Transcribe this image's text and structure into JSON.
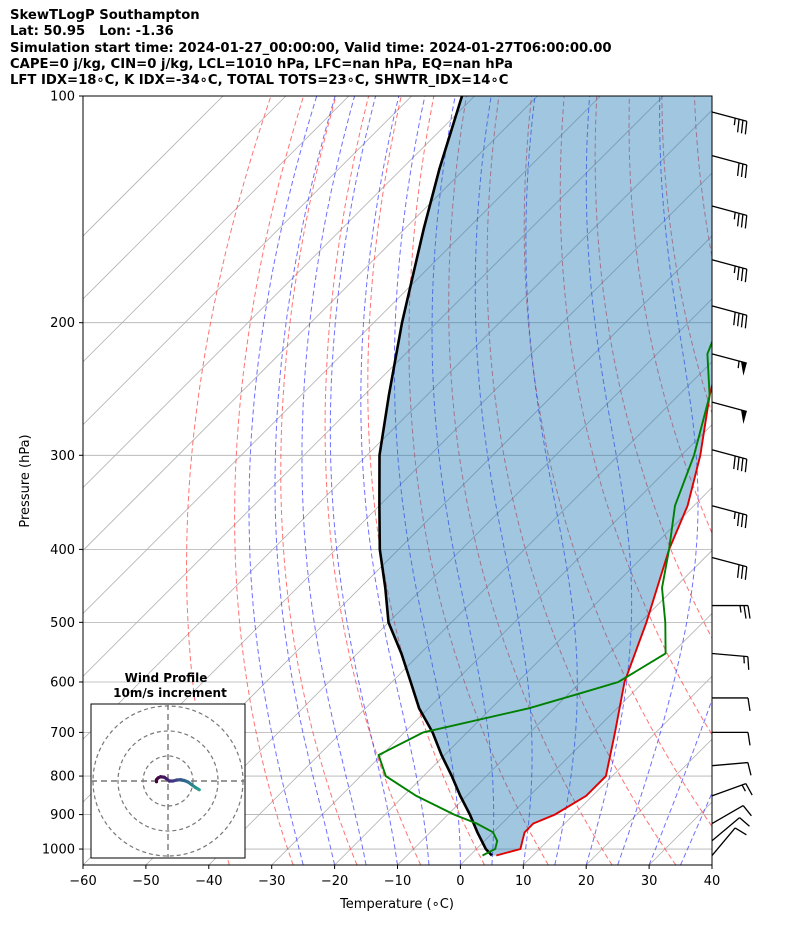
{
  "header": {
    "line1": "SkewTLogP Southampton",
    "line2": "Lat: 50.95   Lon: -1.36",
    "line3": "Simulation start time: 2024-01-27_00:00:00, Valid time: 2024-01-27T06:00:00.00",
    "line4": "CAPE=0 j/kg, CIN=0 j/kg, LCL=1010 hPa, LFC=nan hPa, EQ=nan hPa",
    "line5": "LFT IDX=18∘C, K IDX=-34∘C, TOTAL TOTS=23∘C, SHWTR_IDX=14∘C"
  },
  "chart_data": {
    "type": "line",
    "xlabel": "Temperature (∘C)",
    "ylabel": "Pressure (hPa)",
    "xlim": [
      -60,
      40
    ],
    "ylim": [
      1050,
      100
    ],
    "y_scale": "log",
    "x_ticks": [
      -60,
      -50,
      -40,
      -30,
      -20,
      -10,
      0,
      10,
      20,
      30,
      40
    ],
    "x_tick_labels": [
      "−60",
      "−50",
      "−40",
      "−30",
      "−20",
      "−10",
      "0",
      "10",
      "20",
      "30",
      "40"
    ],
    "y_ticks": [
      1000,
      900,
      800,
      700,
      600,
      500,
      400,
      300,
      200,
      100
    ],
    "y_tick_labels": [
      "1000",
      "900",
      "800",
      "700",
      "600",
      "500",
      "400",
      "300",
      "200",
      "100"
    ],
    "skew_degrees": 45,
    "grid": true,
    "colors": {
      "temperature": "#e00000",
      "dewpoint": "#008000",
      "parcel": "#000000",
      "cape_fill": "#1f77b4",
      "dry_adiabats": "#ff4444",
      "moist_adiabats": "#3333ff",
      "mixing_ratio": "#888888"
    },
    "series": [
      {
        "key": "temperature",
        "pressure": [
          1020,
          1000,
          975,
          950,
          925,
          900,
          850,
          800,
          700,
          600,
          500,
          400,
          350,
          300,
          250,
          220,
          200,
          180,
          150,
          120,
          100
        ],
        "values": [
          4.2,
          7.0,
          6.0,
          5.0,
          5.0,
          7.0,
          9.0,
          9.0,
          3.5,
          -3.0,
          -9.0,
          -17.0,
          -21.0,
          -27.0,
          -35.0,
          -40.0,
          -41.8,
          -46.0,
          -52.0,
          -52.0,
          -53.0
        ]
      },
      {
        "key": "dewpoint",
        "pressure": [
          1020,
          1000,
          975,
          950,
          925,
          900,
          850,
          800,
          750,
          700,
          650,
          620,
          600,
          550,
          500,
          450,
          400,
          350,
          300,
          250,
          220,
          200,
          170,
          150,
          140,
          120,
          100
        ],
        "values": [
          2.0,
          3.0,
          2.0,
          0.0,
          -4.0,
          -9.0,
          -18.0,
          -26.0,
          -30.5,
          -27.0,
          -14.0,
          -8.0,
          -4.0,
          -1.0,
          -6.0,
          -12.0,
          -17.0,
          -23.0,
          -28.0,
          -35.0,
          -42.0,
          -45.0,
          -44.0,
          -38.0,
          -47.0,
          -56.0,
          -64.0
        ]
      },
      {
        "key": "parcel",
        "pressure": [
          1020,
          1000,
          950,
          900,
          850,
          800,
          750,
          700,
          650,
          600,
          550,
          500,
          450,
          400,
          350,
          300,
          250,
          200,
          170,
          150,
          125,
          100
        ],
        "values": [
          3.5,
          1.5,
          -2.5,
          -6.5,
          -11.0,
          -15.5,
          -20.5,
          -25.5,
          -31.5,
          -37.0,
          -43.0,
          -50.0,
          -56.0,
          -63.0,
          -70.0,
          -78.0,
          -86.0,
          -95.5,
          -102.0,
          -107.0,
          -114.0,
          -122.0
        ]
      }
    ],
    "wind_barbs": [
      {
        "pressure": 1020,
        "speed_kt": 10,
        "direction_deg": 220
      },
      {
        "pressure": 975,
        "speed_kt": 10,
        "direction_deg": 230
      },
      {
        "pressure": 925,
        "speed_kt": 10,
        "direction_deg": 240
      },
      {
        "pressure": 850,
        "speed_kt": 15,
        "direction_deg": 250
      },
      {
        "pressure": 775,
        "speed_kt": 10,
        "direction_deg": 265
      },
      {
        "pressure": 700,
        "speed_kt": 10,
        "direction_deg": 270
      },
      {
        "pressure": 630,
        "speed_kt": 10,
        "direction_deg": 270
      },
      {
        "pressure": 550,
        "speed_kt": 15,
        "direction_deg": 275
      },
      {
        "pressure": 475,
        "speed_kt": 25,
        "direction_deg": 270
      },
      {
        "pressure": 410,
        "speed_kt": 30,
        "direction_deg": 285
      },
      {
        "pressure": 350,
        "speed_kt": 35,
        "direction_deg": 285
      },
      {
        "pressure": 295,
        "speed_kt": 40,
        "direction_deg": 285
      },
      {
        "pressure": 255,
        "speed_kt": 50,
        "direction_deg": 285
      },
      {
        "pressure": 220,
        "speed_kt": 55,
        "direction_deg": 285
      },
      {
        "pressure": 190,
        "speed_kt": 40,
        "direction_deg": 285
      },
      {
        "pressure": 165,
        "speed_kt": 35,
        "direction_deg": 285
      },
      {
        "pressure": 140,
        "speed_kt": 35,
        "direction_deg": 285
      },
      {
        "pressure": 120,
        "speed_kt": 30,
        "direction_deg": 285
      },
      {
        "pressure": 105,
        "speed_kt": 35,
        "direction_deg": 285
      }
    ],
    "wind_profile": {
      "title_line1": "Wind Profile",
      "title_line2": "10m/s increment",
      "hodograph_u_ms": [
        12.5,
        11.0,
        9.5,
        8.0,
        6.5,
        5.0,
        3.5,
        2.0,
        0.5,
        -0.5,
        -1.5,
        -3.0,
        -4.0,
        -4.6,
        -4.6
      ],
      "hodograph_v_ms": [
        -3.5,
        -2.6,
        -1.5,
        -0.4,
        0.2,
        0.5,
        0.4,
        0.0,
        0.0,
        0.8,
        1.5,
        1.7,
        1.2,
        0.5,
        -0.3
      ]
    }
  }
}
